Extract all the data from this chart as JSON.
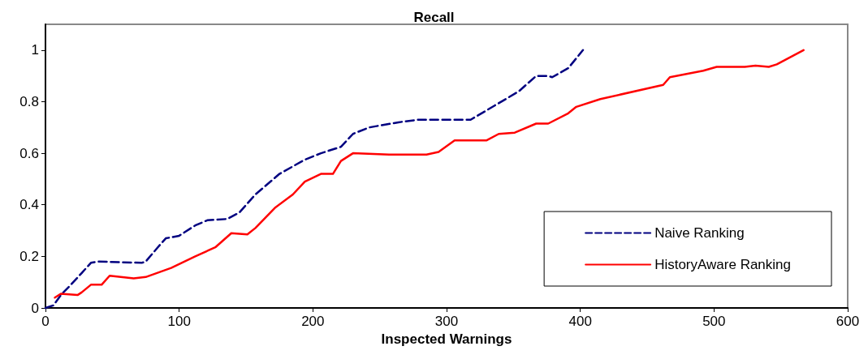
{
  "chart_data": {
    "type": "line",
    "title": "Recall",
    "xlabel": "Inspected Warnings",
    "xlim": [
      0,
      600
    ],
    "xticks": [
      0,
      100,
      200,
      300,
      400,
      500,
      600
    ],
    "ylim": [
      0,
      1.1
    ],
    "yticks": [
      0,
      0.2,
      0.4,
      0.6,
      0.8,
      1
    ],
    "grid": false,
    "legend": "bottom right",
    "marker": "none",
    "series": [
      {
        "name": "Naive Ranking",
        "color": "#000080",
        "line_style": "dashed",
        "x": [
          0,
          6,
          11.5,
          19,
          27,
          34,
          39,
          72,
          75,
          84,
          90,
          100,
          112,
          121,
          136,
          145,
          157,
          175,
          194,
          206,
          221,
          230,
          242,
          264,
          279,
          312,
          318,
          336,
          354,
          367,
          376,
          379,
          391,
          402
        ],
        "values": [
          0,
          0.01,
          0.05,
          0.09,
          0.135,
          0.175,
          0.18,
          0.175,
          0.18,
          0.235,
          0.27,
          0.28,
          0.32,
          0.34,
          0.345,
          0.37,
          0.44,
          0.52,
          0.575,
          0.6,
          0.625,
          0.675,
          0.7,
          0.72,
          0.73,
          0.73,
          0.73,
          0.785,
          0.84,
          0.9,
          0.9,
          0.895,
          0.93,
          1
        ]
      },
      {
        "name": "HistoryAware Ranking",
        "color": "#ff0000",
        "line_style": "solid",
        "x": [
          7,
          11.5,
          24,
          27,
          34,
          42,
          48,
          66,
          75,
          94,
          112,
          127,
          139,
          151,
          157,
          172,
          185,
          194,
          206,
          215,
          221,
          230,
          257,
          285,
          294,
          306,
          330,
          339,
          351,
          367,
          376,
          391,
          397,
          415,
          462,
          467,
          492,
          502,
          523,
          531,
          541,
          547,
          567
        ],
        "values": [
          0.04,
          0.055,
          0.05,
          0.06,
          0.09,
          0.09,
          0.125,
          0.115,
          0.12,
          0.155,
          0.2,
          0.235,
          0.29,
          0.285,
          0.31,
          0.39,
          0.44,
          0.49,
          0.52,
          0.52,
          0.57,
          0.6,
          0.595,
          0.595,
          0.605,
          0.65,
          0.65,
          0.675,
          0.68,
          0.715,
          0.715,
          0.755,
          0.78,
          0.81,
          0.865,
          0.895,
          0.92,
          0.935,
          0.935,
          0.94,
          0.935,
          0.945,
          1
        ]
      }
    ]
  }
}
